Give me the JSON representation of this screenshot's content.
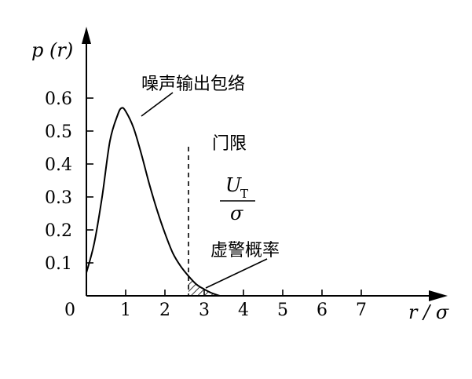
{
  "chart_data": {
    "type": "line",
    "ylabel": "p (r)",
    "xlabel": "r / σ",
    "origin_label": "0",
    "x_ticks": [
      1,
      2,
      3,
      4,
      5,
      6,
      7
    ],
    "x_tick_labels": [
      "1",
      "2",
      "3",
      "4",
      "5",
      "6",
      "7"
    ],
    "y_ticks": [
      0.1,
      0.2,
      0.3,
      0.4,
      0.5,
      0.6
    ],
    "y_tick_labels": [
      "0.1",
      "0.2",
      "0.3",
      "0.4",
      "0.5",
      "0.6"
    ],
    "xlim": [
      0,
      8
    ],
    "ylim": [
      0,
      0.8
    ],
    "grid": false,
    "series": [
      {
        "name": "噪声输出包络",
        "x": [
          0,
          0.2,
          0.4,
          0.6,
          0.8,
          0.9,
          1.0,
          1.2,
          1.4,
          1.6,
          1.8,
          2.0,
          2.2,
          2.4,
          2.6,
          2.8,
          3.0,
          3.2,
          3.4
        ],
        "y": [
          0.07,
          0.16,
          0.3,
          0.47,
          0.55,
          0.57,
          0.56,
          0.51,
          0.43,
          0.34,
          0.26,
          0.19,
          0.13,
          0.09,
          0.06,
          0.035,
          0.02,
          0.008,
          0.0
        ]
      }
    ],
    "threshold": {
      "x": 2.6,
      "label": "门限",
      "fraction_numerator": "U",
      "fraction_subscript": "T",
      "fraction_denominator": "σ"
    },
    "annotations": {
      "curve": "噪声输出包络",
      "shaded_area": "虚警概率"
    }
  }
}
